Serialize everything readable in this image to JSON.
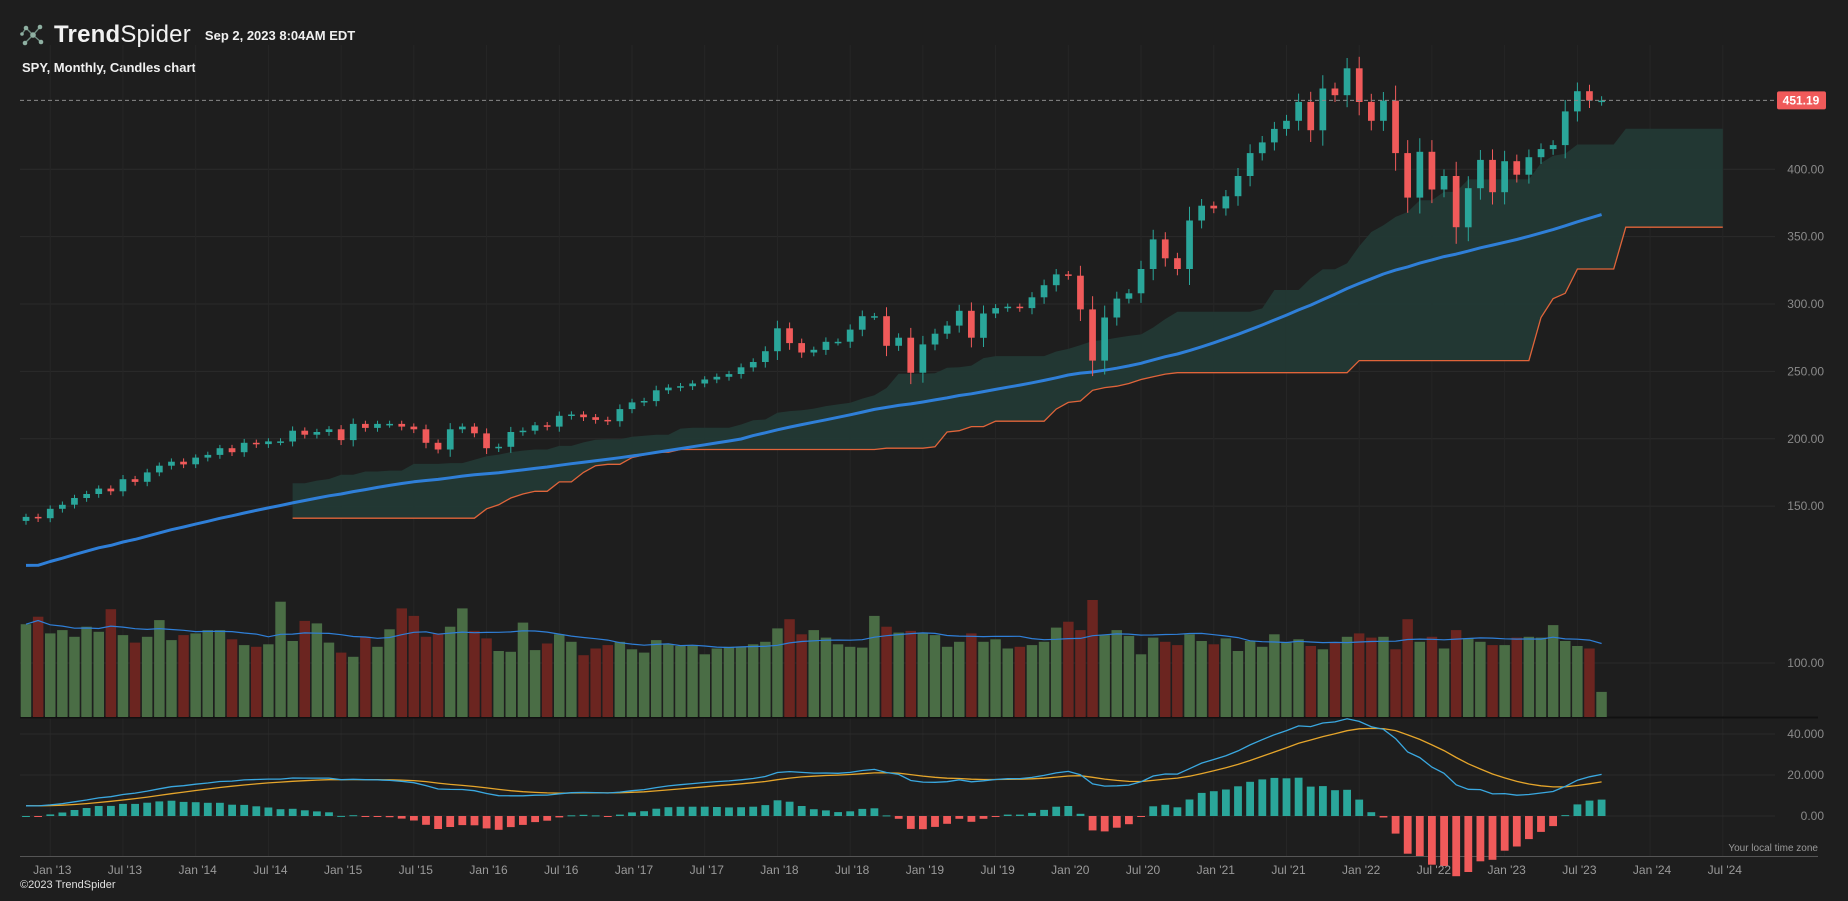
{
  "header": {
    "brand_bold": "Trend",
    "brand_light": "Spider",
    "timestamp": "Sep 2, 2023 8:04AM EDT",
    "chart_title": "SPY, Monthly, Candles chart",
    "copyright": "©2023 TrendSpider",
    "timezone_note": "Your local time zone",
    "logo_icon": "trendspider-network-icon"
  },
  "colors": {
    "background": "#1e1e1e",
    "up": "#2aa69a",
    "down": "#f05a5a",
    "vol_up": "#4a6d45",
    "vol_down": "#6b2520",
    "ma": "#2f7fd8",
    "cloud": "#223a35",
    "cloud_edge": "#e0643a",
    "macd": "#3aa8e0",
    "signal": "#e5a52b"
  },
  "chart_data": {
    "type": "candlestick",
    "title": "SPY, Monthly, Candles chart",
    "last_price": 451.19,
    "price_axis": {
      "ylim": [
        110,
        470
      ],
      "ticks": [
        "150.00",
        "200.00",
        "250.00",
        "300.00",
        "350.00",
        "400.00"
      ]
    },
    "time_axis": {
      "start": "2012-11",
      "ticks": [
        {
          "label": "Jan '13",
          "m": 2
        },
        {
          "label": "Jul '13",
          "m": 8
        },
        {
          "label": "Jan '14",
          "m": 14
        },
        {
          "label": "Jul '14",
          "m": 20
        },
        {
          "label": "Jan '15",
          "m": 26
        },
        {
          "label": "Jul '15",
          "m": 32
        },
        {
          "label": "Jan '16",
          "m": 38
        },
        {
          "label": "Jul '16",
          "m": 44
        },
        {
          "label": "Jan '17",
          "m": 50
        },
        {
          "label": "Jul '17",
          "m": 56
        },
        {
          "label": "Jan '18",
          "m": 62
        },
        {
          "label": "Jul '18",
          "m": 68
        },
        {
          "label": "Jan '19",
          "m": 74
        },
        {
          "label": "Jul '19",
          "m": 80
        },
        {
          "label": "Jan '20",
          "m": 86
        },
        {
          "label": "Jul '20",
          "m": 92
        },
        {
          "label": "Jan '21",
          "m": 98
        },
        {
          "label": "Jul '21",
          "m": 104
        },
        {
          "label": "Jan '22",
          "m": 110
        },
        {
          "label": "Jul '22",
          "m": 116
        },
        {
          "label": "Jan '23",
          "m": 122
        },
        {
          "label": "Jul '23",
          "m": 128
        },
        {
          "label": "Jan '24",
          "m": 134
        },
        {
          "label": "Jul '24",
          "m": 140
        }
      ]
    },
    "closes": [
      142,
      141,
      148,
      151,
      156,
      159,
      163,
      161,
      170,
      168,
      175,
      180,
      183,
      181,
      186,
      188,
      193,
      190,
      197,
      196,
      198,
      198,
      206,
      203,
      205,
      207,
      199,
      211,
      208,
      211,
      211,
      209,
      207,
      197,
      192,
      207,
      209,
      204,
      193,
      194,
      205,
      206,
      210,
      209,
      217,
      218,
      216,
      214,
      213,
      222,
      227,
      228,
      236,
      238,
      239,
      241,
      244,
      246,
      248,
      253,
      257,
      265,
      282,
      271,
      264,
      266,
      272,
      272,
      281,
      291,
      291,
      269,
      275,
      249,
      270,
      278,
      284,
      295,
      275,
      293,
      297,
      298,
      297,
      305,
      314,
      322,
      321,
      296,
      258,
      290,
      304,
      308,
      326,
      348,
      334,
      326,
      362,
      373,
      371,
      380,
      395,
      412,
      420,
      430,
      436,
      450,
      429,
      460,
      455,
      475,
      450,
      436,
      451,
      412,
      379,
      413,
      385,
      395,
      357,
      386,
      407,
      383,
      406,
      396,
      409,
      415,
      418,
      443,
      458,
      451,
      451
    ],
    "volume": {
      "ylim": [
        0,
        140
      ],
      "values": [
        111,
        120,
        100,
        104,
        96,
        108,
        102,
        129,
        98,
        89,
        96,
        116,
        92,
        98,
        100,
        104,
        104,
        93,
        86,
        84,
        87,
        138,
        91,
        115,
        112,
        89,
        77,
        72,
        96,
        84,
        105,
        130,
        121,
        96,
        100,
        108,
        130,
        103,
        94,
        79,
        78,
        113,
        80,
        88,
        99,
        90,
        74,
        82,
        86,
        90,
        81,
        77,
        92,
        87,
        85,
        86,
        75,
        82,
        84,
        84,
        87,
        90,
        106,
        117,
        99,
        104,
        95,
        87,
        84,
        83,
        121,
        108,
        101,
        103,
        101,
        98,
        84,
        90,
        100,
        90,
        93,
        82,
        84,
        86,
        90,
        107,
        114,
        104,
        140,
        98,
        104,
        97,
        75,
        95,
        90,
        86,
        99,
        91,
        87,
        94,
        79,
        91,
        84,
        99,
        89,
        93,
        85,
        81,
        89,
        96,
        100,
        95,
        96,
        81,
        117,
        90,
        96,
        82,
        104,
        94,
        90,
        86,
        86,
        95,
        96,
        95,
        110,
        91,
        85,
        82,
        30
      ]
    },
    "macd": {
      "ticks": [
        "0.00",
        "20.000",
        "40.000"
      ],
      "ylim": [
        -10,
        42
      ]
    }
  }
}
